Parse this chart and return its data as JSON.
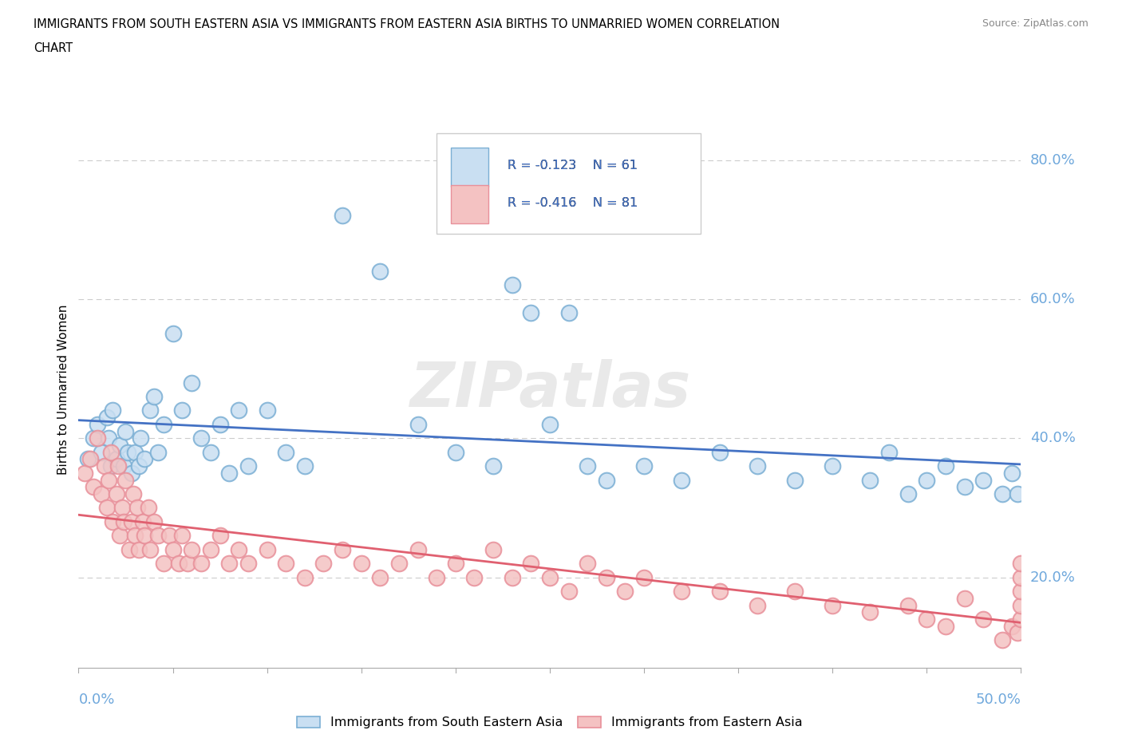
{
  "title_line1": "IMMIGRANTS FROM SOUTH EASTERN ASIA VS IMMIGRANTS FROM EASTERN ASIA BIRTHS TO UNMARRIED WOMEN CORRELATION",
  "title_line2": "CHART",
  "source": "Source: ZipAtlas.com",
  "ylabel": "Births to Unmarried Women",
  "ytick_labels": [
    "20.0%",
    "40.0%",
    "60.0%",
    "80.0%"
  ],
  "ytick_vals": [
    0.2,
    0.4,
    0.6,
    0.8
  ],
  "xtick_left": "0.0%",
  "xtick_right": "50.0%",
  "xlim": [
    0.0,
    0.5
  ],
  "ylim": [
    0.07,
    0.87
  ],
  "R_blue": "R = -0.123",
  "N_blue": "N = 61",
  "R_pink": "R = -0.416",
  "N_pink": "N = 81",
  "label_blue": "Immigrants from South Eastern Asia",
  "label_pink": "Immigrants from Eastern Asia",
  "color_blue_face": "#c9dff2",
  "color_blue_edge": "#7bafd4",
  "color_pink_face": "#f4c2c2",
  "color_pink_edge": "#e8909a",
  "color_blue_line": "#4472c4",
  "color_pink_line": "#e06070",
  "color_grid": "#cccccc",
  "color_ytick": "#6fa8dc",
  "color_xtick": "#6fa8dc",
  "watermark": "ZIPatlas",
  "blue_x": [
    0.005,
    0.008,
    0.01,
    0.012,
    0.015,
    0.016,
    0.017,
    0.018,
    0.02,
    0.022,
    0.024,
    0.025,
    0.026,
    0.028,
    0.03,
    0.032,
    0.033,
    0.035,
    0.038,
    0.04,
    0.042,
    0.045,
    0.05,
    0.055,
    0.06,
    0.065,
    0.07,
    0.075,
    0.08,
    0.085,
    0.09,
    0.1,
    0.11,
    0.12,
    0.14,
    0.16,
    0.18,
    0.2,
    0.22,
    0.23,
    0.24,
    0.25,
    0.26,
    0.27,
    0.28,
    0.3,
    0.32,
    0.34,
    0.36,
    0.38,
    0.4,
    0.42,
    0.43,
    0.44,
    0.45,
    0.46,
    0.47,
    0.48,
    0.49,
    0.495,
    0.498
  ],
  "blue_y": [
    0.37,
    0.4,
    0.42,
    0.38,
    0.43,
    0.4,
    0.36,
    0.44,
    0.37,
    0.39,
    0.36,
    0.41,
    0.38,
    0.35,
    0.38,
    0.36,
    0.4,
    0.37,
    0.44,
    0.46,
    0.38,
    0.42,
    0.55,
    0.44,
    0.48,
    0.4,
    0.38,
    0.42,
    0.35,
    0.44,
    0.36,
    0.44,
    0.38,
    0.36,
    0.72,
    0.64,
    0.42,
    0.38,
    0.36,
    0.62,
    0.58,
    0.42,
    0.58,
    0.36,
    0.34,
    0.36,
    0.34,
    0.38,
    0.36,
    0.34,
    0.36,
    0.34,
    0.38,
    0.32,
    0.34,
    0.36,
    0.33,
    0.34,
    0.32,
    0.35,
    0.32
  ],
  "pink_x": [
    0.003,
    0.006,
    0.008,
    0.01,
    0.012,
    0.014,
    0.015,
    0.016,
    0.017,
    0.018,
    0.02,
    0.021,
    0.022,
    0.023,
    0.024,
    0.025,
    0.027,
    0.028,
    0.029,
    0.03,
    0.031,
    0.032,
    0.034,
    0.035,
    0.037,
    0.038,
    0.04,
    0.042,
    0.045,
    0.048,
    0.05,
    0.053,
    0.055,
    0.058,
    0.06,
    0.065,
    0.07,
    0.075,
    0.08,
    0.085,
    0.09,
    0.1,
    0.11,
    0.12,
    0.13,
    0.14,
    0.15,
    0.16,
    0.17,
    0.18,
    0.19,
    0.2,
    0.21,
    0.22,
    0.23,
    0.24,
    0.25,
    0.26,
    0.27,
    0.28,
    0.29,
    0.3,
    0.32,
    0.34,
    0.36,
    0.38,
    0.4,
    0.42,
    0.44,
    0.45,
    0.46,
    0.47,
    0.48,
    0.49,
    0.495,
    0.498,
    0.5,
    0.5,
    0.5,
    0.5,
    0.5
  ],
  "pink_y": [
    0.35,
    0.37,
    0.33,
    0.4,
    0.32,
    0.36,
    0.3,
    0.34,
    0.38,
    0.28,
    0.32,
    0.36,
    0.26,
    0.3,
    0.28,
    0.34,
    0.24,
    0.28,
    0.32,
    0.26,
    0.3,
    0.24,
    0.28,
    0.26,
    0.3,
    0.24,
    0.28,
    0.26,
    0.22,
    0.26,
    0.24,
    0.22,
    0.26,
    0.22,
    0.24,
    0.22,
    0.24,
    0.26,
    0.22,
    0.24,
    0.22,
    0.24,
    0.22,
    0.2,
    0.22,
    0.24,
    0.22,
    0.2,
    0.22,
    0.24,
    0.2,
    0.22,
    0.2,
    0.24,
    0.2,
    0.22,
    0.2,
    0.18,
    0.22,
    0.2,
    0.18,
    0.2,
    0.18,
    0.18,
    0.16,
    0.18,
    0.16,
    0.15,
    0.16,
    0.14,
    0.13,
    0.17,
    0.14,
    0.11,
    0.13,
    0.12,
    0.14,
    0.16,
    0.18,
    0.2,
    0.22
  ]
}
